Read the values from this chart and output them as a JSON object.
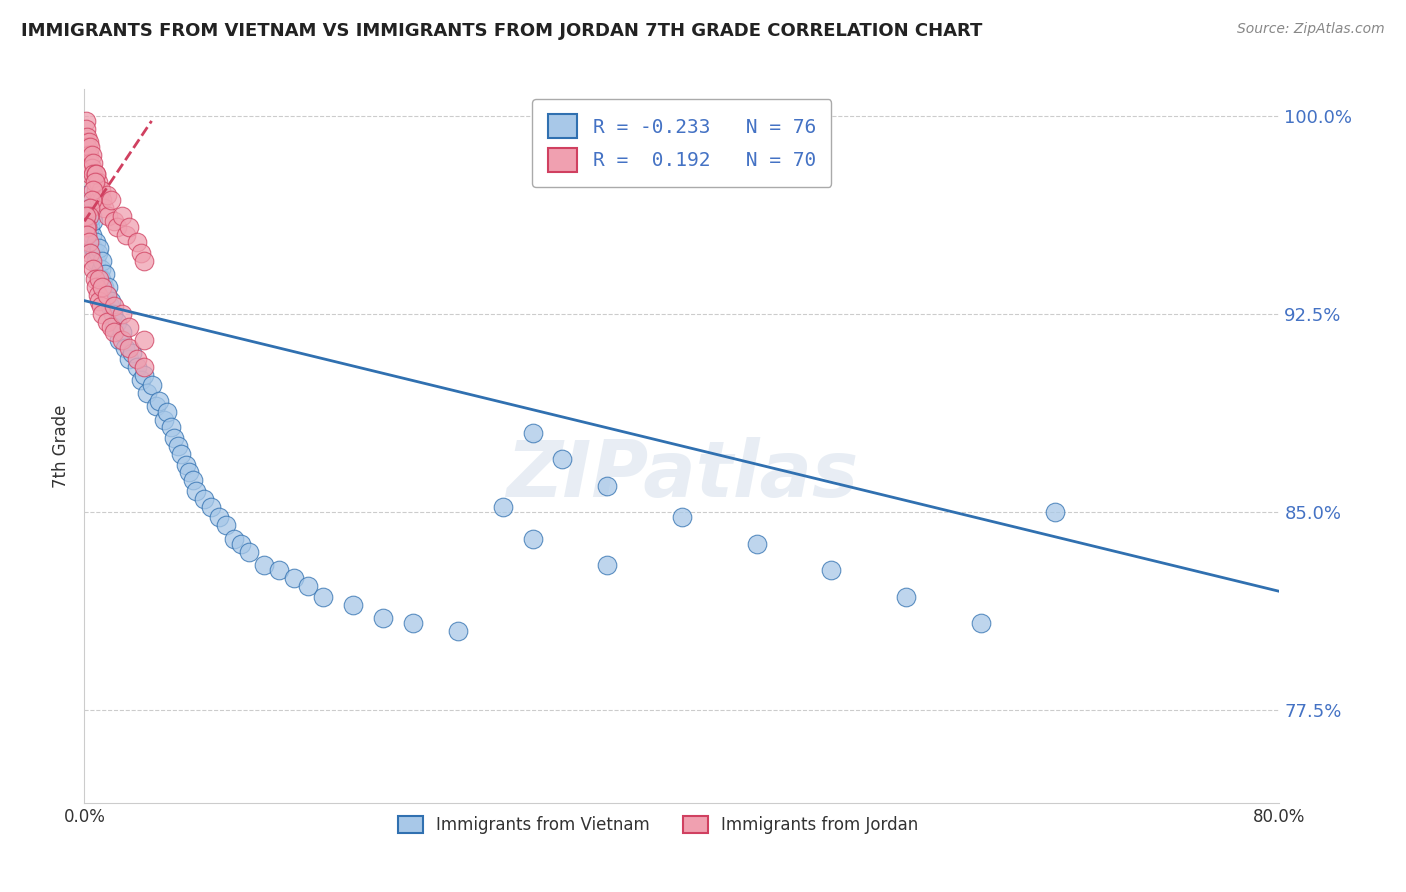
{
  "title": "IMMIGRANTS FROM VIETNAM VS IMMIGRANTS FROM JORDAN 7TH GRADE CORRELATION CHART",
  "source": "Source: ZipAtlas.com",
  "ylabel": "7th Grade",
  "legend1_label": "Immigrants from Vietnam",
  "legend2_label": "Immigrants from Jordan",
  "R_vietnam": -0.233,
  "N_vietnam": 76,
  "R_jordan": 0.192,
  "N_jordan": 70,
  "background_color": "#ffffff",
  "watermark": "ZIPatlas",
  "scatter_vietnam_color": "#a8c8e8",
  "scatter_jordan_color": "#f0a0b0",
  "trendline_vietnam_color": "#3070b0",
  "trendline_jordan_color": "#d04060",
  "trendline_jordan_linestyle": "--",
  "ytick_color": "#4472c4",
  "xlim": [
    0.0,
    0.8
  ],
  "ylim": [
    0.74,
    1.01
  ],
  "yticks": [
    0.775,
    0.85,
    0.925,
    1.0
  ],
  "ytick_labels": [
    "77.5%",
    "85.0%",
    "92.5%",
    "100.0%"
  ],
  "vietnam_x": [
    0.002,
    0.003,
    0.003,
    0.004,
    0.005,
    0.005,
    0.006,
    0.006,
    0.007,
    0.008,
    0.008,
    0.009,
    0.01,
    0.01,
    0.011,
    0.011,
    0.012,
    0.013,
    0.014,
    0.015,
    0.016,
    0.017,
    0.018,
    0.019,
    0.02,
    0.022,
    0.023,
    0.025,
    0.027,
    0.03,
    0.032,
    0.035,
    0.038,
    0.04,
    0.042,
    0.045,
    0.048,
    0.05,
    0.053,
    0.055,
    0.058,
    0.06,
    0.063,
    0.065,
    0.068,
    0.07,
    0.073,
    0.075,
    0.08,
    0.085,
    0.09,
    0.095,
    0.1,
    0.105,
    0.11,
    0.12,
    0.13,
    0.14,
    0.15,
    0.16,
    0.18,
    0.2,
    0.22,
    0.25,
    0.28,
    0.3,
    0.32,
    0.35,
    0.4,
    0.45,
    0.5,
    0.55,
    0.6,
    0.3,
    0.35,
    0.65
  ],
  "vietnam_y": [
    0.97,
    0.965,
    0.96,
    0.958,
    0.962,
    0.955,
    0.95,
    0.96,
    0.948,
    0.952,
    0.945,
    0.948,
    0.94,
    0.95,
    0.942,
    0.938,
    0.945,
    0.935,
    0.94,
    0.932,
    0.935,
    0.928,
    0.93,
    0.925,
    0.92,
    0.922,
    0.915,
    0.918,
    0.912,
    0.908,
    0.91,
    0.905,
    0.9,
    0.902,
    0.895,
    0.898,
    0.89,
    0.892,
    0.885,
    0.888,
    0.882,
    0.878,
    0.875,
    0.872,
    0.868,
    0.865,
    0.862,
    0.858,
    0.855,
    0.852,
    0.848,
    0.845,
    0.84,
    0.838,
    0.835,
    0.83,
    0.828,
    0.825,
    0.822,
    0.818,
    0.815,
    0.81,
    0.808,
    0.805,
    0.852,
    0.88,
    0.87,
    0.86,
    0.848,
    0.838,
    0.828,
    0.818,
    0.808,
    0.84,
    0.83,
    0.85
  ],
  "jordan_x": [
    0.001,
    0.001,
    0.001,
    0.002,
    0.002,
    0.002,
    0.003,
    0.003,
    0.003,
    0.004,
    0.004,
    0.004,
    0.005,
    0.005,
    0.006,
    0.006,
    0.007,
    0.008,
    0.008,
    0.009,
    0.01,
    0.01,
    0.011,
    0.012,
    0.013,
    0.015,
    0.016,
    0.018,
    0.02,
    0.022,
    0.025,
    0.028,
    0.03,
    0.035,
    0.038,
    0.04,
    0.008,
    0.007,
    0.006,
    0.005,
    0.004,
    0.003,
    0.002,
    0.001,
    0.001,
    0.002,
    0.003,
    0.004,
    0.005,
    0.006,
    0.007,
    0.008,
    0.009,
    0.01,
    0.011,
    0.012,
    0.015,
    0.018,
    0.02,
    0.025,
    0.03,
    0.035,
    0.04,
    0.01,
    0.012,
    0.015,
    0.02,
    0.025,
    0.03,
    0.04
  ],
  "jordan_y": [
    0.998,
    0.995,
    0.99,
    0.992,
    0.988,
    0.985,
    0.99,
    0.985,
    0.98,
    0.988,
    0.982,
    0.978,
    0.985,
    0.98,
    0.982,
    0.978,
    0.975,
    0.978,
    0.972,
    0.975,
    0.97,
    0.968,
    0.972,
    0.968,
    0.965,
    0.97,
    0.962,
    0.968,
    0.96,
    0.958,
    0.962,
    0.955,
    0.958,
    0.952,
    0.948,
    0.945,
    0.978,
    0.975,
    0.972,
    0.968,
    0.965,
    0.962,
    0.958,
    0.962,
    0.958,
    0.955,
    0.952,
    0.948,
    0.945,
    0.942,
    0.938,
    0.935,
    0.932,
    0.93,
    0.928,
    0.925,
    0.922,
    0.92,
    0.918,
    0.915,
    0.912,
    0.908,
    0.905,
    0.938,
    0.935,
    0.932,
    0.928,
    0.925,
    0.92,
    0.915
  ],
  "trendline_vietnam_x0": 0.0,
  "trendline_vietnam_x1": 0.8,
  "trendline_vietnam_y0": 0.93,
  "trendline_vietnam_y1": 0.82,
  "trendline_jordan_x0": 0.0,
  "trendline_jordan_x1": 0.045,
  "trendline_jordan_y0": 0.96,
  "trendline_jordan_y1": 0.998
}
